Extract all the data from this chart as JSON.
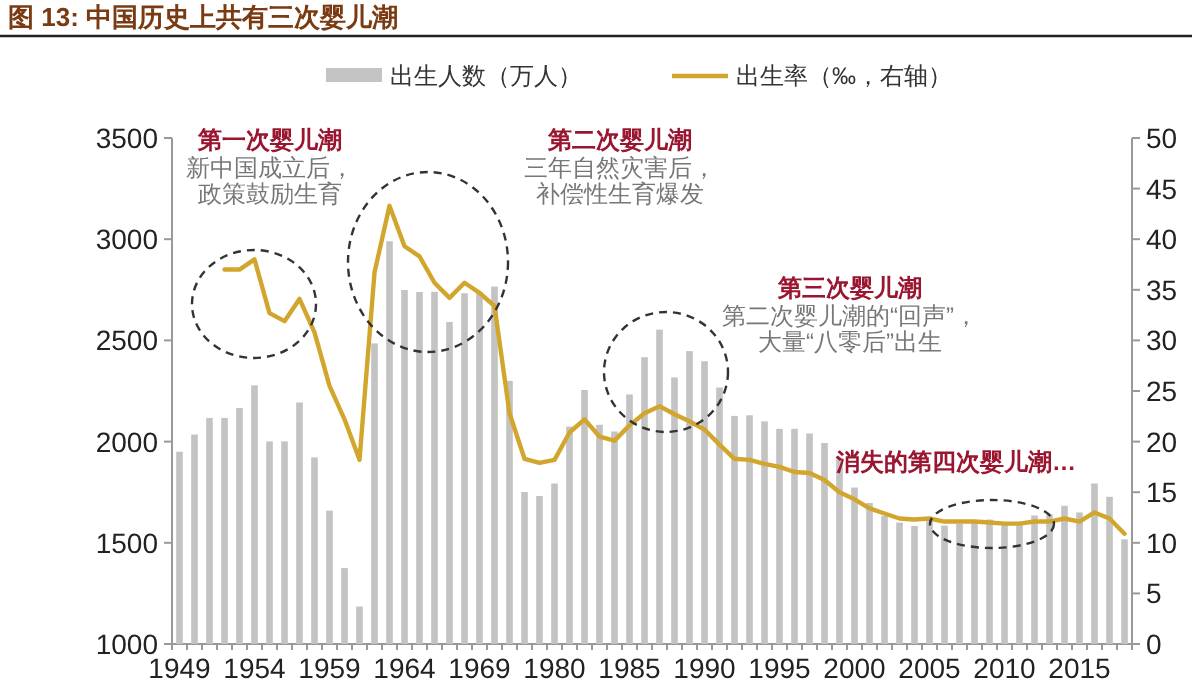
{
  "chart_data": {
    "type": "bar",
    "title": "图 13: 中国历史上共有三次婴儿潮",
    "categories": [
      "1949",
      null,
      null,
      null,
      null,
      "1954",
      null,
      null,
      null,
      null,
      "1959",
      null,
      null,
      null,
      null,
      "1964",
      null,
      null,
      null,
      null,
      "1969",
      null,
      null,
      null,
      null,
      "1980",
      null,
      null,
      null,
      null,
      "1985",
      null,
      null,
      null,
      null,
      "1990",
      null,
      null,
      null,
      null,
      "1995",
      null,
      null,
      null,
      null,
      "2000",
      null,
      null,
      null,
      null,
      "2005",
      null,
      null,
      null,
      null,
      "2010",
      null,
      null,
      null,
      null,
      "2015",
      null,
      null,
      null
    ],
    "series": [
      {
        "name": "出生人数（万人）",
        "color": "#c3c3c3",
        "values": [
          1950,
          2035,
          2117,
          2117,
          2166,
          2278,
          2001,
          2001,
          2193,
          1922,
          1659,
          1375,
          1185,
          2485,
          2990,
          2749,
          2739,
          2740,
          2591,
          2733,
          2740,
          2766,
          2300,
          1751,
          1731,
          1793,
          2074,
          2255,
          2083,
          2050,
          2233,
          2417,
          2553,
          2317,
          2447,
          2397,
          2267,
          2127,
          2130,
          2100,
          2063,
          2063,
          2040,
          1993,
          1920,
          1773,
          1697,
          1633,
          1600,
          1583,
          1610,
          1585,
          1595,
          1608,
          1615,
          1592,
          1604,
          1635,
          1640,
          1683,
          1650,
          1793,
          1727,
          1517
        ]
      },
      {
        "name": "出生率（‰，右轴）",
        "type": "line",
        "axis": "y2",
        "color": "#d2a62c",
        "values": [
          null,
          null,
          null,
          37.0,
          37.0,
          38.0,
          32.7,
          31.9,
          34.1,
          30.8,
          25.5,
          22.2,
          18.2,
          36.7,
          43.3,
          39.3,
          38.3,
          35.7,
          34.2,
          35.7,
          34.7,
          33.4,
          22.8,
          18.3,
          17.9,
          18.2,
          20.9,
          22.2,
          20.5,
          20.1,
          21.6,
          22.8,
          23.5,
          22.7,
          22.0,
          21.2,
          19.7,
          18.3,
          18.2,
          17.8,
          17.5,
          17.0,
          16.9,
          16.2,
          15.0,
          14.3,
          13.4,
          12.9,
          12.4,
          12.3,
          12.4,
          12.1,
          12.1,
          12.1,
          12.0,
          11.9,
          11.9,
          12.1,
          12.1,
          12.4,
          12.1,
          13.0,
          12.4,
          10.9
        ]
      }
    ],
    "ylim": [
      1000,
      3500
    ],
    "yticks": [
      1000,
      1500,
      2000,
      2500,
      3000,
      3500
    ],
    "y2lim": [
      0,
      50
    ],
    "y2ticks": [
      0,
      5,
      10,
      15,
      20,
      25,
      30,
      35,
      40,
      45,
      50
    ],
    "legend": "top",
    "annotations": [
      "第一次婴儿潮",
      "新中国成立后，",
      "政策鼓励生育",
      "第二次婴儿潮",
      "三年自然灾害后，",
      "补偿性生育爆发",
      "第三次婴儿潮",
      "第二次婴儿潮的“回声”，",
      "大量“八零后”出生",
      "消失的第四次婴儿潮…"
    ]
  }
}
